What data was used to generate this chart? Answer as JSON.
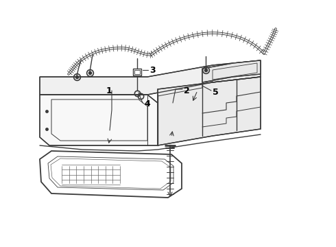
{
  "bg_color": "#ffffff",
  "line_color": "#3a3a3a",
  "label_color": "#000000",
  "label_fontsize": 9,
  "lw_main": 1.0,
  "lw_thick": 1.3,
  "lw_thin": 0.6
}
